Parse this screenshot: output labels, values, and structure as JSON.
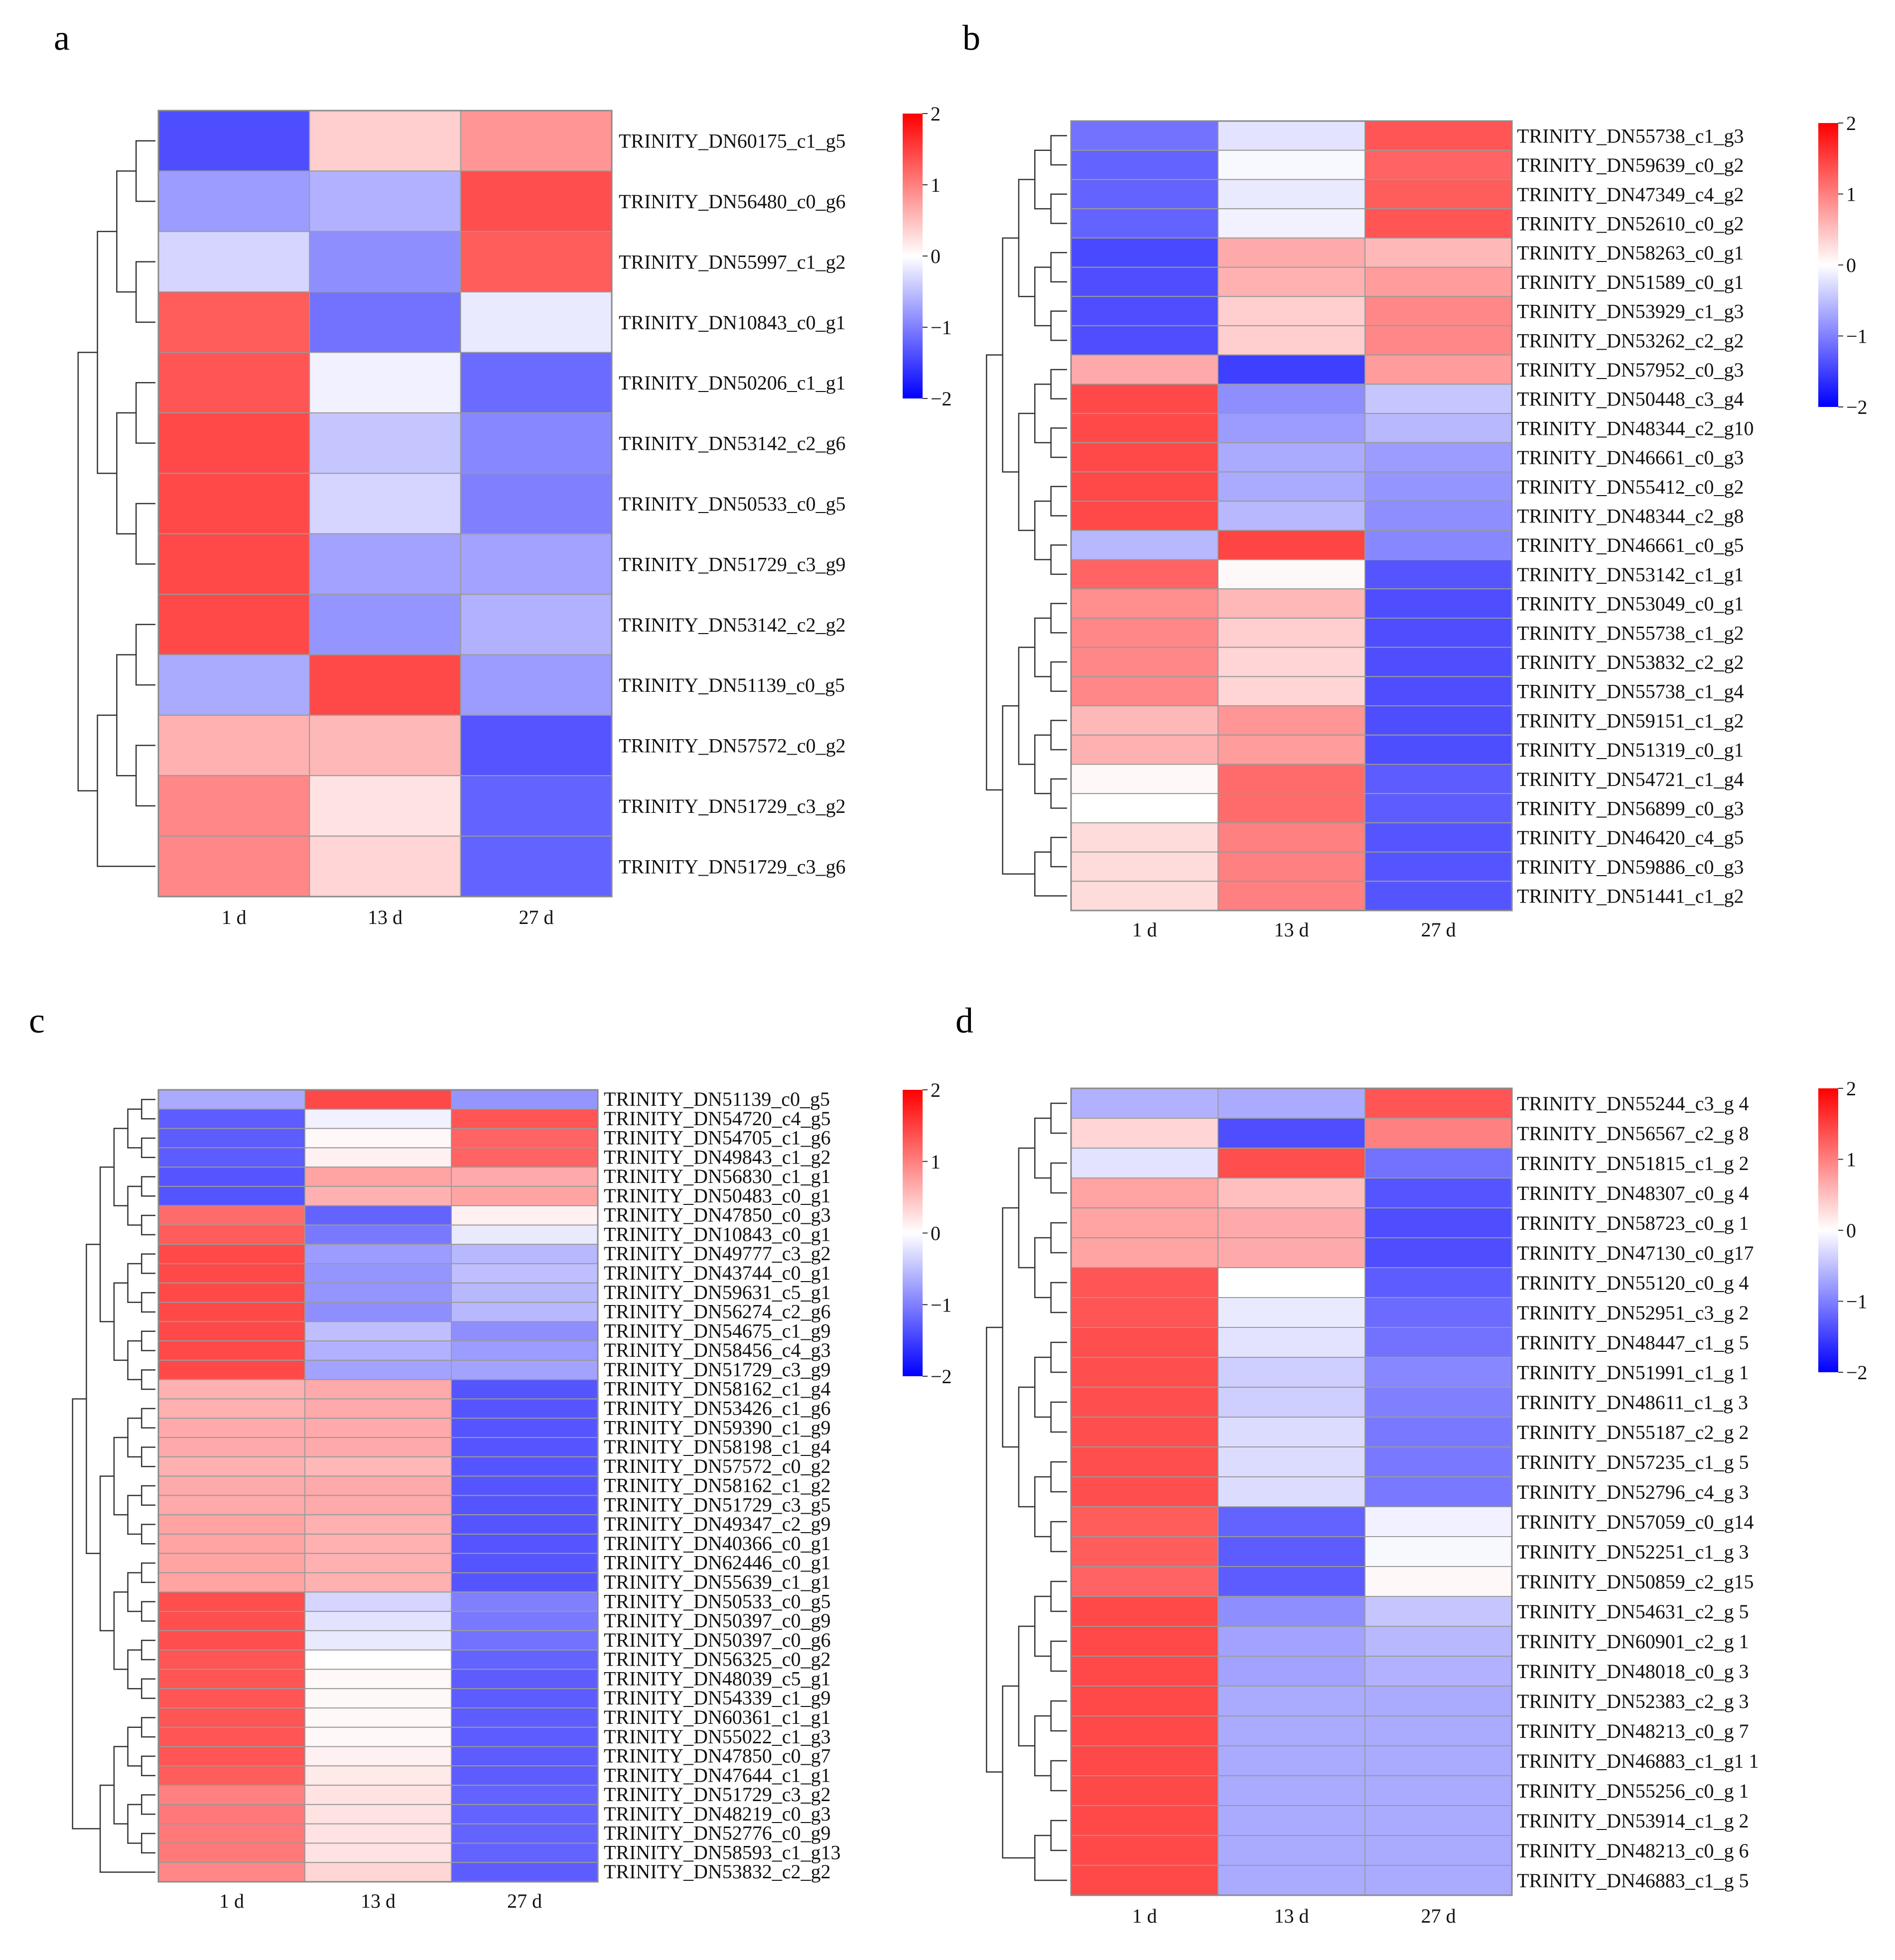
{
  "figure": {
    "colors": {
      "low": "#0000ff",
      "mid": "#ffffff",
      "high": "#ff0000",
      "grid": "#9a9a9a"
    },
    "legend_ticks": [
      "2",
      "1",
      "0",
      "−1",
      "−2"
    ]
  },
  "chart_data": [
    {
      "panel": "a",
      "type": "heatmap",
      "title": "",
      "columns": [
        "1 d",
        "13 d",
        "27 d"
      ],
      "value_range": [
        -2,
        2
      ],
      "rows": [
        {
          "label": "TRINITY_DN60175_c1_g5",
          "values": [
            -1.25,
            0.35,
            0.75
          ]
        },
        {
          "label": "TRINITY_DN56480_c0_g6",
          "values": [
            -0.7,
            -0.55,
            1.25
          ]
        },
        {
          "label": "TRINITY_DN55997_c1_g2",
          "values": [
            -0.3,
            -0.8,
            1.15
          ]
        },
        {
          "label": "TRINITY_DN10843_c0_g1",
          "values": [
            1.15,
            -1.0,
            -0.15
          ]
        },
        {
          "label": "TRINITY_DN50206_c1_g1",
          "values": [
            1.2,
            -0.1,
            -1.05
          ]
        },
        {
          "label": "TRINITY_DN53142_c2_g6",
          "values": [
            1.3,
            -0.4,
            -0.85
          ]
        },
        {
          "label": "TRINITY_DN50533_c0_g5",
          "values": [
            1.3,
            -0.3,
            -0.9
          ]
        },
        {
          "label": "TRINITY_DN51729_c3_g9",
          "values": [
            1.3,
            -0.65,
            -0.65
          ]
        },
        {
          "label": "TRINITY_DN53142_c2_g2",
          "values": [
            1.3,
            -0.75,
            -0.55
          ]
        },
        {
          "label": "TRINITY_DN51139_c0_g5",
          "values": [
            -0.6,
            1.3,
            -0.7
          ]
        },
        {
          "label": "TRINITY_DN57572_c0_g2",
          "values": [
            0.55,
            0.5,
            -1.2
          ]
        },
        {
          "label": "TRINITY_DN51729_c3_g2",
          "values": [
            0.85,
            0.2,
            -1.1
          ]
        },
        {
          "label": "TRINITY_DN51729_c3_g6",
          "values": [
            0.85,
            0.3,
            -1.1
          ]
        }
      ]
    },
    {
      "panel": "b",
      "type": "heatmap",
      "title": "",
      "columns": [
        "1 d",
        "13 d",
        "27 d"
      ],
      "value_range": [
        -2,
        2
      ],
      "rows": [
        {
          "label": "TRINITY_DN55738_c1_g3",
          "values": [
            -1.0,
            -0.2,
            1.2
          ]
        },
        {
          "label": "TRINITY_DN59639_c0_g2",
          "values": [
            -1.1,
            -0.05,
            1.1
          ]
        },
        {
          "label": "TRINITY_DN47349_c4_g2",
          "values": [
            -1.1,
            -0.15,
            1.15
          ]
        },
        {
          "label": "TRINITY_DN52610_c0_g2",
          "values": [
            -1.1,
            -0.1,
            1.2
          ]
        },
        {
          "label": "TRINITY_DN58263_c0_g1",
          "values": [
            -1.3,
            0.6,
            0.5
          ]
        },
        {
          "label": "TRINITY_DN51589_c0_g1",
          "values": [
            -1.25,
            0.55,
            0.7
          ]
        },
        {
          "label": "TRINITY_DN53929_c1_g3",
          "values": [
            -1.25,
            0.35,
            0.85
          ]
        },
        {
          "label": "TRINITY_DN53262_c2_g2",
          "values": [
            -1.25,
            0.35,
            0.85
          ]
        },
        {
          "label": "TRINITY_DN57952_c0_g3",
          "values": [
            0.6,
            -1.4,
            0.7
          ]
        },
        {
          "label": "TRINITY_DN50448_c3_g4",
          "values": [
            1.3,
            -0.8,
            -0.4
          ]
        },
        {
          "label": "TRINITY_DN48344_c2_g10",
          "values": [
            1.3,
            -0.7,
            -0.5
          ]
        },
        {
          "label": "TRINITY_DN46661_c0_g3",
          "values": [
            1.3,
            -0.6,
            -0.7
          ]
        },
        {
          "label": "TRINITY_DN55412_c0_g2",
          "values": [
            1.3,
            -0.6,
            -0.75
          ]
        },
        {
          "label": "TRINITY_DN48344_c2_g8",
          "values": [
            1.3,
            -0.5,
            -0.8
          ]
        },
        {
          "label": "TRINITY_DN46661_c0_g5",
          "values": [
            -0.5,
            1.35,
            -0.85
          ]
        },
        {
          "label": "TRINITY_DN53142_c1_g1",
          "values": [
            1.1,
            0.05,
            -1.2
          ]
        },
        {
          "label": "TRINITY_DN53049_c0_g1",
          "values": [
            0.8,
            0.5,
            -1.25
          ]
        },
        {
          "label": "TRINITY_DN55738_c1_g2",
          "values": [
            0.85,
            0.35,
            -1.25
          ]
        },
        {
          "label": "TRINITY_DN53832_c2_g2",
          "values": [
            0.85,
            0.3,
            -1.25
          ]
        },
        {
          "label": "TRINITY_DN55738_c1_g4",
          "values": [
            0.85,
            0.3,
            -1.25
          ]
        },
        {
          "label": "TRINITY_DN59151_c1_g2",
          "values": [
            0.5,
            0.75,
            -1.25
          ]
        },
        {
          "label": "TRINITY_DN51319_c0_g1",
          "values": [
            0.55,
            0.7,
            -1.25
          ]
        },
        {
          "label": "TRINITY_DN54721_c1_g4",
          "values": [
            0.05,
            1.05,
            -1.15
          ]
        },
        {
          "label": "TRINITY_DN56899_c0_g3",
          "values": [
            0.0,
            1.05,
            -1.15
          ]
        },
        {
          "label": "TRINITY_DN46420_c4_g5",
          "values": [
            0.25,
            0.9,
            -1.2
          ]
        },
        {
          "label": "TRINITY_DN59886_c0_g3",
          "values": [
            0.25,
            0.9,
            -1.2
          ]
        },
        {
          "label": "TRINITY_DN51441_c1_g2",
          "values": [
            0.25,
            0.9,
            -1.2
          ]
        }
      ]
    },
    {
      "panel": "c",
      "type": "heatmap",
      "title": "",
      "columns": [
        "1 d",
        "13 d",
        "27 d"
      ],
      "value_range": [
        -2,
        2
      ],
      "rows": [
        {
          "label": "TRINITY_DN51139_c0_g5",
          "values": [
            -0.6,
            1.3,
            -0.75
          ]
        },
        {
          "label": "TRINITY_DN54720_c4_g5",
          "values": [
            -1.15,
            -0.1,
            1.2
          ]
        },
        {
          "label": "TRINITY_DN54705_c1_g6",
          "values": [
            -1.15,
            0.05,
            1.1
          ]
        },
        {
          "label": "TRINITY_DN49843_c1_g2",
          "values": [
            -1.15,
            0.1,
            1.1
          ]
        },
        {
          "label": "TRINITY_DN56830_c1_g1",
          "values": [
            -1.2,
            0.65,
            0.6
          ]
        },
        {
          "label": "TRINITY_DN50483_c0_g1",
          "values": [
            -1.2,
            0.55,
            0.65
          ]
        },
        {
          "label": "TRINITY_DN47850_c0_g3",
          "values": [
            1.05,
            -1.1,
            0.1
          ]
        },
        {
          "label": "TRINITY_DN10843_c0_g1",
          "values": [
            1.15,
            -0.95,
            -0.15
          ]
        },
        {
          "label": "TRINITY_DN49777_c3_g2",
          "values": [
            1.3,
            -0.7,
            -0.5
          ]
        },
        {
          "label": "TRINITY_DN43744_c0_g1",
          "values": [
            1.3,
            -0.75,
            -0.45
          ]
        },
        {
          "label": "TRINITY_DN59631_c5_g1",
          "values": [
            1.3,
            -0.75,
            -0.5
          ]
        },
        {
          "label": "TRINITY_DN56274_c2_g6",
          "values": [
            1.3,
            -0.8,
            -0.5
          ]
        },
        {
          "label": "TRINITY_DN54675_c1_g9",
          "values": [
            1.3,
            -0.45,
            -0.8
          ]
        },
        {
          "label": "TRINITY_DN58456_c4_g3",
          "values": [
            1.3,
            -0.55,
            -0.7
          ]
        },
        {
          "label": "TRINITY_DN51729_c3_g9",
          "values": [
            1.3,
            -0.65,
            -0.65
          ]
        },
        {
          "label": "TRINITY_DN58162_c1_g4",
          "values": [
            0.55,
            0.6,
            -1.2
          ]
        },
        {
          "label": "TRINITY_DN53426_c1_g6",
          "values": [
            0.55,
            0.6,
            -1.2
          ]
        },
        {
          "label": "TRINITY_DN59390_c1_g9",
          "values": [
            0.6,
            0.6,
            -1.2
          ]
        },
        {
          "label": "TRINITY_DN58198_c1_g4",
          "values": [
            0.6,
            0.6,
            -1.2
          ]
        },
        {
          "label": "TRINITY_DN57572_c0_g2",
          "values": [
            0.55,
            0.5,
            -1.2
          ]
        },
        {
          "label": "TRINITY_DN58162_c1_g2",
          "values": [
            0.6,
            0.6,
            -1.2
          ]
        },
        {
          "label": "TRINITY_DN51729_c3_g5",
          "values": [
            0.6,
            0.6,
            -1.2
          ]
        },
        {
          "label": "TRINITY_DN49347_c2_g9",
          "values": [
            0.65,
            0.55,
            -1.2
          ]
        },
        {
          "label": "TRINITY_DN40366_c0_g1",
          "values": [
            0.65,
            0.55,
            -1.2
          ]
        },
        {
          "label": "TRINITY_DN62446_c0_g1",
          "values": [
            0.65,
            0.55,
            -1.2
          ]
        },
        {
          "label": "TRINITY_DN55639_c1_g1",
          "values": [
            0.65,
            0.55,
            -1.2
          ]
        },
        {
          "label": "TRINITY_DN50533_c0_g5",
          "values": [
            1.25,
            -0.3,
            -0.9
          ]
        },
        {
          "label": "TRINITY_DN50397_c0_g9",
          "values": [
            1.25,
            -0.2,
            -0.95
          ]
        },
        {
          "label": "TRINITY_DN50397_c0_g6",
          "values": [
            1.25,
            -0.15,
            -1.0
          ]
        },
        {
          "label": "TRINITY_DN56325_c0_g2",
          "values": [
            1.2,
            0.0,
            -1.1
          ]
        },
        {
          "label": "TRINITY_DN48039_c5_g1",
          "values": [
            1.2,
            0.05,
            -1.15
          ]
        },
        {
          "label": "TRINITY_DN54339_c1_g9",
          "values": [
            1.2,
            0.05,
            -1.15
          ]
        },
        {
          "label": "TRINITY_DN60361_c1_g1",
          "values": [
            1.2,
            0.05,
            -1.15
          ]
        },
        {
          "label": "TRINITY_DN55022_c1_g3",
          "values": [
            1.2,
            0.05,
            -1.15
          ]
        },
        {
          "label": "TRINITY_DN47850_c0_g7",
          "values": [
            1.2,
            0.1,
            -1.15
          ]
        },
        {
          "label": "TRINITY_DN47644_c1_g1",
          "values": [
            1.15,
            0.15,
            -1.15
          ]
        },
        {
          "label": "TRINITY_DN51729_c3_g2",
          "values": [
            0.9,
            0.2,
            -1.1
          ]
        },
        {
          "label": "TRINITY_DN48219_c0_g3",
          "values": [
            0.95,
            0.2,
            -1.1
          ]
        },
        {
          "label": "TRINITY_DN52776_c0_g9",
          "values": [
            0.95,
            0.2,
            -1.1
          ]
        },
        {
          "label": "TRINITY_DN58593_c1_g13",
          "values": [
            0.95,
            0.2,
            -1.1
          ]
        },
        {
          "label": "TRINITY_DN53832_c2_g2",
          "values": [
            0.85,
            0.3,
            -1.15
          ]
        }
      ]
    },
    {
      "panel": "d",
      "type": "heatmap",
      "title": "",
      "columns": [
        "1 d",
        "13 d",
        "27 d"
      ],
      "value_range": [
        -2,
        2
      ],
      "rows": [
        {
          "label": "TRINITY_DN55244_c3_g 4",
          "values": [
            -0.55,
            -0.6,
            1.2
          ]
        },
        {
          "label": "TRINITY_DN56567_c2_g 8",
          "values": [
            0.3,
            -1.25,
            0.9
          ]
        },
        {
          "label": "TRINITY_DN51815_c1_g 2",
          "values": [
            -0.2,
            1.25,
            -1.0
          ]
        },
        {
          "label": "TRINITY_DN48307_c0_g 4",
          "values": [
            0.65,
            0.45,
            -1.2
          ]
        },
        {
          "label": "TRINITY_DN58723_c0_g 1",
          "values": [
            0.65,
            0.6,
            -1.25
          ]
        },
        {
          "label": "TRINITY_DN47130_c0_g17",
          "values": [
            0.65,
            0.6,
            -1.25
          ]
        },
        {
          "label": "TRINITY_DN55120_c0_g 4",
          "values": [
            1.2,
            0.0,
            -1.15
          ]
        },
        {
          "label": "TRINITY_DN52951_c3_g 2",
          "values": [
            1.2,
            -0.15,
            -1.05
          ]
        },
        {
          "label": "TRINITY_DN48447_c1_g 5",
          "values": [
            1.25,
            -0.2,
            -1.0
          ]
        },
        {
          "label": "TRINITY_DN51991_c1_g 1",
          "values": [
            1.25,
            -0.35,
            -0.85
          ]
        },
        {
          "label": "TRINITY_DN48611_c1_g 3",
          "values": [
            1.25,
            -0.35,
            -0.9
          ]
        },
        {
          "label": "TRINITY_DN55187_c2_g 2",
          "values": [
            1.25,
            -0.25,
            -0.95
          ]
        },
        {
          "label": "TRINITY_DN57235_c1_g 5",
          "values": [
            1.25,
            -0.25,
            -0.95
          ]
        },
        {
          "label": "TRINITY_DN52796_c4_g 3",
          "values": [
            1.25,
            -0.25,
            -0.95
          ]
        },
        {
          "label": "TRINITY_DN57059_c0_g14",
          "values": [
            1.15,
            -1.1,
            -0.1
          ]
        },
        {
          "label": "TRINITY_DN52251_c1_g 3",
          "values": [
            1.15,
            -1.15,
            -0.05
          ]
        },
        {
          "label": "TRINITY_DN50859_c2_g15",
          "values": [
            1.1,
            -1.15,
            0.05
          ]
        },
        {
          "label": "TRINITY_DN54631_c2_g 5",
          "values": [
            1.3,
            -0.8,
            -0.4
          ]
        },
        {
          "label": "TRINITY_DN60901_c2_g 1",
          "values": [
            1.3,
            -0.65,
            -0.5
          ]
        },
        {
          "label": "TRINITY_DN48018_c0_g 3",
          "values": [
            1.3,
            -0.65,
            -0.55
          ]
        },
        {
          "label": "TRINITY_DN52383_c2_g 3",
          "values": [
            1.3,
            -0.6,
            -0.6
          ]
        },
        {
          "label": "TRINITY_DN48213_c0_g 7",
          "values": [
            1.3,
            -0.6,
            -0.6
          ]
        },
        {
          "label": "TRINITY_DN46883_c1_g1  1",
          "values": [
            1.3,
            -0.6,
            -0.6
          ]
        },
        {
          "label": "TRINITY_DN55256_c0_g 1",
          "values": [
            1.3,
            -0.6,
            -0.6
          ]
        },
        {
          "label": "TRINITY_DN53914_c1_g 2",
          "values": [
            1.3,
            -0.6,
            -0.6
          ]
        },
        {
          "label": "TRINITY_DN48213_c0_g 6",
          "values": [
            1.3,
            -0.6,
            -0.6
          ]
        },
        {
          "label": "TRINITY_DN46883_c1_g 5",
          "values": [
            1.3,
            -0.6,
            -0.6
          ]
        }
      ]
    }
  ]
}
